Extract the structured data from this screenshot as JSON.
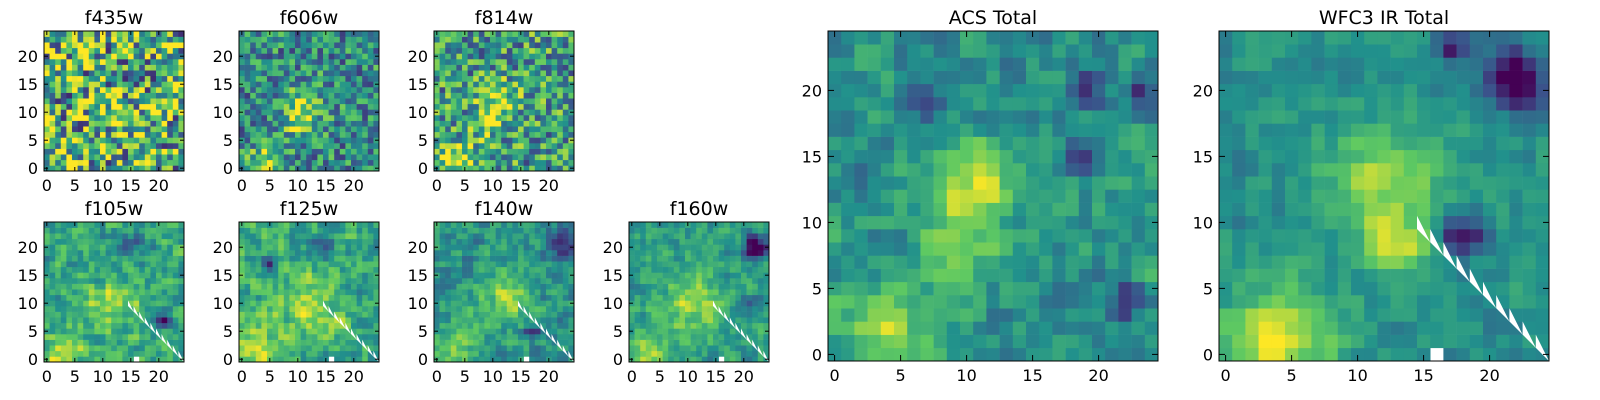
{
  "figure": {
    "colormap": [
      "#440154",
      "#3b528b",
      "#21918c",
      "#5ec962",
      "#fde725"
    ],
    "cell_border_color": "#ffffff",
    "frame_color": "#000000"
  },
  "chart_data": [
    {
      "type": "heatmap",
      "title": "f435w",
      "grid_size": 25,
      "xlim": [
        0,
        25
      ],
      "ylim": [
        0,
        25
      ],
      "xticks": [
        0,
        5,
        10,
        15,
        20
      ],
      "yticks": [
        0,
        5,
        10,
        15,
        20
      ],
      "xticklabels": [
        "0",
        "5",
        "10",
        "15",
        "20"
      ],
      "yticklabels": [
        "0",
        "5",
        "10",
        "15",
        "20"
      ],
      "seed": 11,
      "noise": 0.5,
      "smooth": 0,
      "base": 0.62,
      "mask_diag": null,
      "bright": [
        [
          3,
          1,
          2.5,
          0.25
        ],
        [
          12,
          10,
          3,
          0.15
        ],
        [
          18,
          3,
          2,
          0.1
        ]
      ],
      "dark": []
    },
    {
      "type": "heatmap",
      "title": "f606w",
      "grid_size": 25,
      "xlim": [
        0,
        25
      ],
      "ylim": [
        0,
        25
      ],
      "xticks": [
        0,
        5,
        10,
        15,
        20
      ],
      "yticks": [
        0,
        5,
        10,
        15,
        20
      ],
      "xticklabels": [
        "0",
        "5",
        "10",
        "15",
        "20"
      ],
      "yticklabels": [
        "0",
        "5",
        "10",
        "15",
        "20"
      ],
      "seed": 23,
      "noise": 0.3,
      "smooth": 0,
      "base": 0.48,
      "mask_diag": null,
      "bright": [
        [
          4,
          1,
          2,
          0.4
        ],
        [
          11,
          11,
          2.5,
          0.35
        ],
        [
          10,
          8,
          2,
          0.2
        ]
      ],
      "dark": []
    },
    {
      "type": "heatmap",
      "title": "f814w",
      "grid_size": 25,
      "xlim": [
        0,
        25
      ],
      "ylim": [
        0,
        25
      ],
      "xticks": [
        0,
        5,
        10,
        15,
        20
      ],
      "yticks": [
        0,
        5,
        10,
        15,
        20
      ],
      "xticklabels": [
        "0",
        "5",
        "10",
        "15",
        "20"
      ],
      "yticklabels": [
        "0",
        "5",
        "10",
        "15",
        "20"
      ],
      "seed": 37,
      "noise": 0.35,
      "smooth": 0,
      "base": 0.55,
      "mask_diag": null,
      "bright": [
        [
          4,
          1,
          2.5,
          0.4
        ],
        [
          11,
          12,
          2.5,
          0.3
        ],
        [
          9,
          8,
          2,
          0.2
        ]
      ],
      "dark": []
    },
    {
      "type": "heatmap",
      "title": "f105w",
      "grid_size": 25,
      "xlim": [
        0,
        25
      ],
      "ylim": [
        0,
        25
      ],
      "xticks": [
        0,
        5,
        10,
        15,
        20
      ],
      "yticks": [
        0,
        5,
        10,
        15,
        20
      ],
      "xticklabels": [
        "0",
        "5",
        "10",
        "15",
        "20"
      ],
      "yticklabels": [
        "0",
        "5",
        "10",
        "15",
        "20"
      ],
      "seed": 41,
      "noise": 0.28,
      "smooth": 1,
      "base": 0.58,
      "mask_diag": 20,
      "bright": [
        [
          3,
          1,
          3,
          0.3
        ],
        [
          12,
          10,
          3.5,
          0.25
        ]
      ],
      "dark": [
        [
          21,
          7,
          1,
          0.6
        ],
        [
          15,
          20,
          2,
          0.2
        ]
      ]
    },
    {
      "type": "heatmap",
      "title": "f125w",
      "grid_size": 25,
      "xlim": [
        0,
        25
      ],
      "ylim": [
        0,
        25
      ],
      "xticks": [
        0,
        5,
        10,
        15,
        20
      ],
      "yticks": [
        0,
        5,
        10,
        15,
        20
      ],
      "xticklabels": [
        "0",
        "5",
        "10",
        "15",
        "20"
      ],
      "yticklabels": [
        "0",
        "5",
        "10",
        "15",
        "20"
      ],
      "seed": 53,
      "noise": 0.28,
      "smooth": 1,
      "base": 0.62,
      "mask_diag": 20,
      "bright": [
        [
          3,
          1,
          3,
          0.3
        ],
        [
          12,
          9,
          3.5,
          0.25
        ]
      ],
      "dark": [
        [
          5,
          17,
          1,
          0.6
        ],
        [
          15,
          20,
          1.5,
          0.3
        ]
      ]
    },
    {
      "type": "heatmap",
      "title": "f140w",
      "grid_size": 25,
      "xlim": [
        0,
        25
      ],
      "ylim": [
        0,
        25
      ],
      "xticks": [
        0,
        5,
        10,
        15,
        20
      ],
      "yticks": [
        0,
        5,
        10,
        15,
        20
      ],
      "xticklabels": [
        "0",
        "5",
        "10",
        "15",
        "20"
      ],
      "yticklabels": [
        "0",
        "5",
        "10",
        "15",
        "20"
      ],
      "seed": 67,
      "noise": 0.25,
      "smooth": 1,
      "base": 0.52,
      "mask_diag": 20,
      "bright": [
        [
          3,
          1,
          3,
          0.3
        ],
        [
          12,
          11,
          3.5,
          0.3
        ]
      ],
      "dark": [
        [
          22,
          21,
          1.5,
          0.6
        ],
        [
          17,
          5,
          1,
          0.5
        ]
      ]
    },
    {
      "type": "heatmap",
      "title": "f160w",
      "grid_size": 25,
      "xlim": [
        0,
        25
      ],
      "ylim": [
        0,
        25
      ],
      "xticks": [
        0,
        5,
        10,
        15,
        20
      ],
      "yticks": [
        0,
        5,
        10,
        15,
        20
      ],
      "xticklabels": [
        "0",
        "5",
        "10",
        "15",
        "20"
      ],
      "yticklabels": [
        "0",
        "5",
        "10",
        "15",
        "20"
      ],
      "seed": 79,
      "noise": 0.22,
      "smooth": 1,
      "base": 0.55,
      "mask_diag": 20,
      "bright": [
        [
          3,
          1,
          3,
          0.3
        ],
        [
          11,
          10,
          4,
          0.3
        ]
      ],
      "dark": [
        [
          22,
          20,
          1.5,
          0.7
        ],
        [
          21,
          10,
          1,
          0.5
        ]
      ]
    },
    {
      "type": "heatmap",
      "title": "ACS Total",
      "grid_size": 25,
      "xlim": [
        0,
        25
      ],
      "ylim": [
        0,
        25
      ],
      "xticks": [
        0,
        5,
        10,
        15,
        20
      ],
      "yticks": [
        0,
        5,
        10,
        15,
        20
      ],
      "xticklabels": [
        "0",
        "5",
        "10",
        "15",
        "20"
      ],
      "yticklabels": [
        "0",
        "5",
        "10",
        "15",
        "20"
      ],
      "seed": 97,
      "noise": 0.22,
      "smooth": 1,
      "base": 0.5,
      "mask_diag": null,
      "bright": [
        [
          4,
          1,
          2.5,
          0.45
        ],
        [
          11,
          13,
          2,
          0.4
        ],
        [
          9,
          9,
          2,
          0.3
        ]
      ],
      "dark": [
        [
          19,
          20,
          0.8,
          0.5
        ],
        [
          23,
          20,
          0.8,
          0.5
        ],
        [
          19,
          15,
          0.8,
          0.5
        ],
        [
          22,
          4,
          0.8,
          0.5
        ],
        [
          7,
          19,
          0.8,
          0.4
        ]
      ]
    },
    {
      "type": "heatmap",
      "title": "WFC3 IR Total",
      "grid_size": 25,
      "xlim": [
        0,
        25
      ],
      "ylim": [
        0,
        25
      ],
      "xticks": [
        0,
        5,
        10,
        15,
        20
      ],
      "yticks": [
        0,
        5,
        10,
        15,
        20
      ],
      "xticklabels": [
        "0",
        "5",
        "10",
        "15",
        "20"
      ],
      "yticklabels": [
        "0",
        "5",
        "10",
        "15",
        "20"
      ],
      "seed": 113,
      "noise": 0.15,
      "smooth": 1,
      "base": 0.5,
      "mask_diag": 20,
      "bright": [
        [
          4,
          1,
          3,
          0.45
        ],
        [
          12,
          13,
          3,
          0.35
        ],
        [
          13,
          8,
          1.5,
          0.4
        ]
      ],
      "dark": [
        [
          22,
          21,
          1.5,
          0.7
        ],
        [
          18,
          9,
          1,
          0.6
        ],
        [
          17,
          23,
          0.8,
          0.5
        ]
      ]
    }
  ]
}
